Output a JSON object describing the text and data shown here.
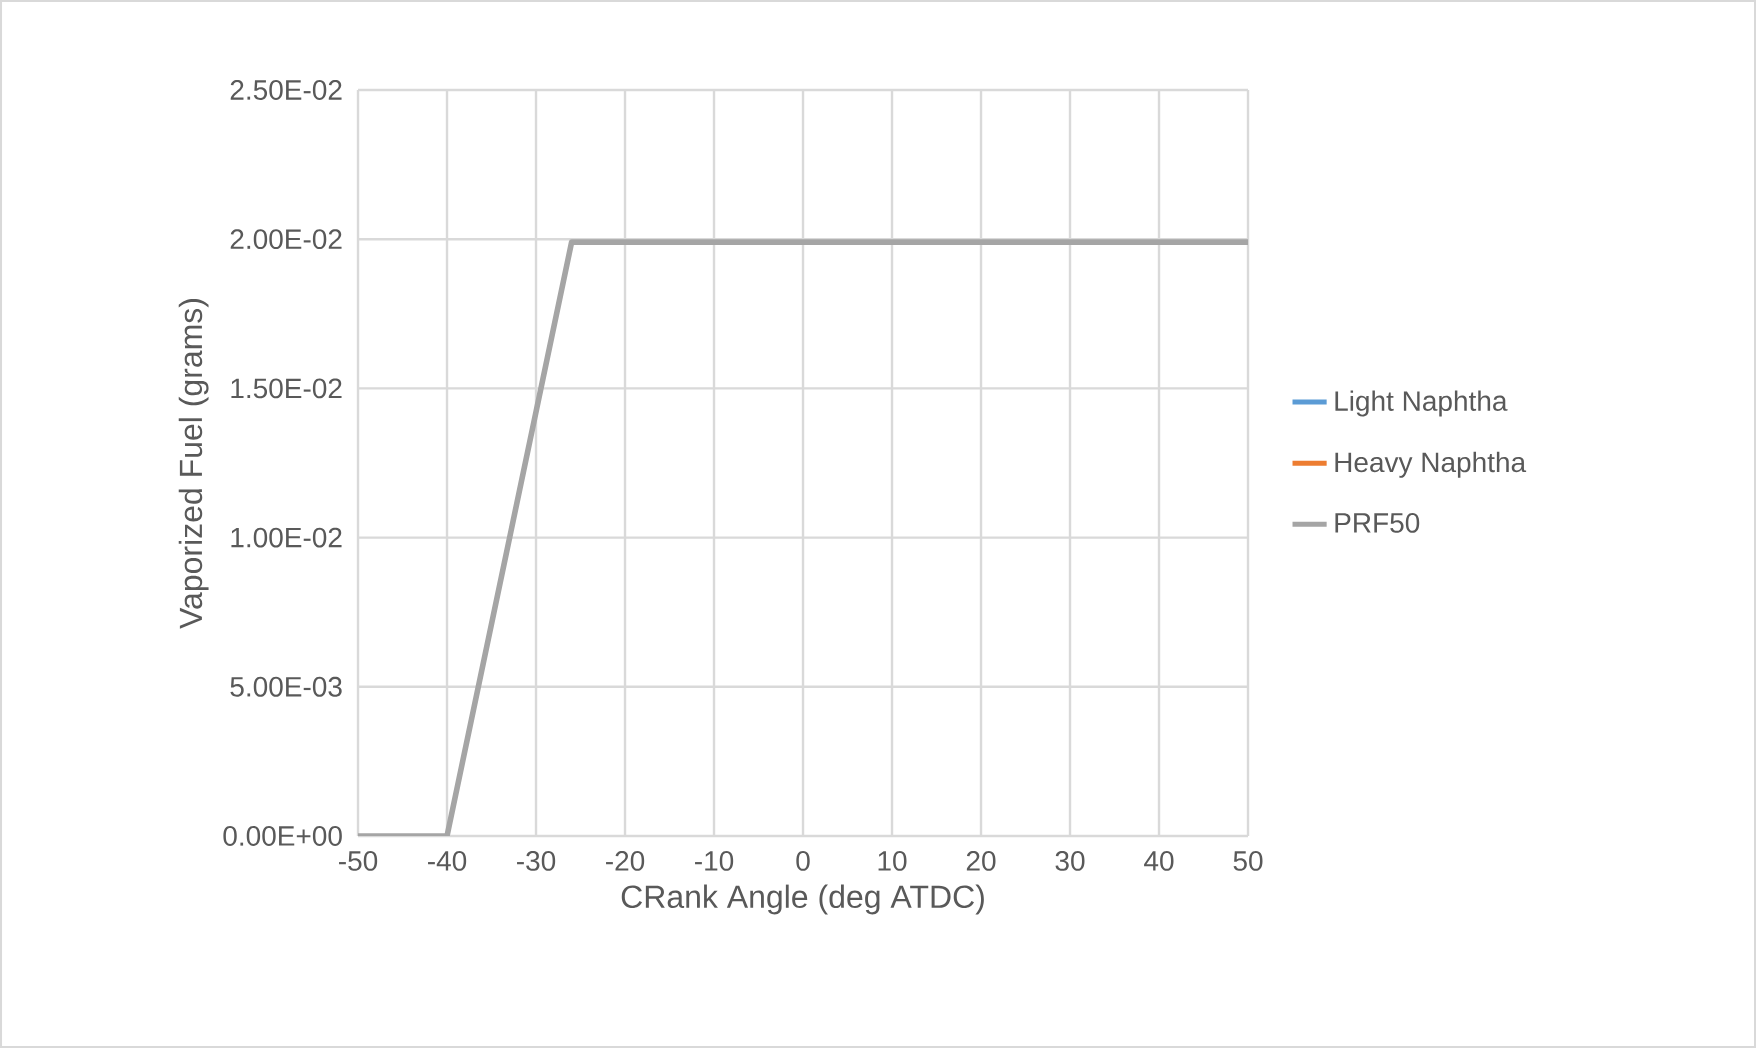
{
  "chart_data": {
    "type": "line",
    "xlabel": "CRank Angle (deg ATDC)",
    "ylabel": "Vaporized Fuel (grams)",
    "x": [
      -50,
      -40,
      -26,
      50
    ],
    "series": [
      {
        "name": "Light Naphtha",
        "color": "#5b9bd5",
        "values": [
          null,
          null,
          null,
          null
        ]
      },
      {
        "name": "Heavy Naphtha",
        "color": "#ed7d31",
        "values": [
          null,
          null,
          null,
          null
        ]
      },
      {
        "name": "PRF50",
        "color": "#a5a5a5",
        "values": [
          0,
          0,
          0.0199,
          0.0199
        ]
      }
    ],
    "xlim": [
      -50,
      50
    ],
    "xticks": [
      -50,
      -40,
      -30,
      -20,
      -10,
      0,
      10,
      20,
      30,
      40,
      50
    ],
    "ylim": [
      0,
      0.025
    ],
    "yticks": [
      {
        "value": 0,
        "label": "0.00E+00"
      },
      {
        "value": 0.005,
        "label": "5.00E-03"
      },
      {
        "value": 0.01,
        "label": "1.00E-02"
      },
      {
        "value": 0.015,
        "label": "1.50E-02"
      },
      {
        "value": 0.02,
        "label": "2.00E-02"
      },
      {
        "value": 0.025,
        "label": "2.50E-02"
      }
    ],
    "grid": true,
    "legend": "right",
    "marker": "none",
    "line_style": "solid"
  }
}
